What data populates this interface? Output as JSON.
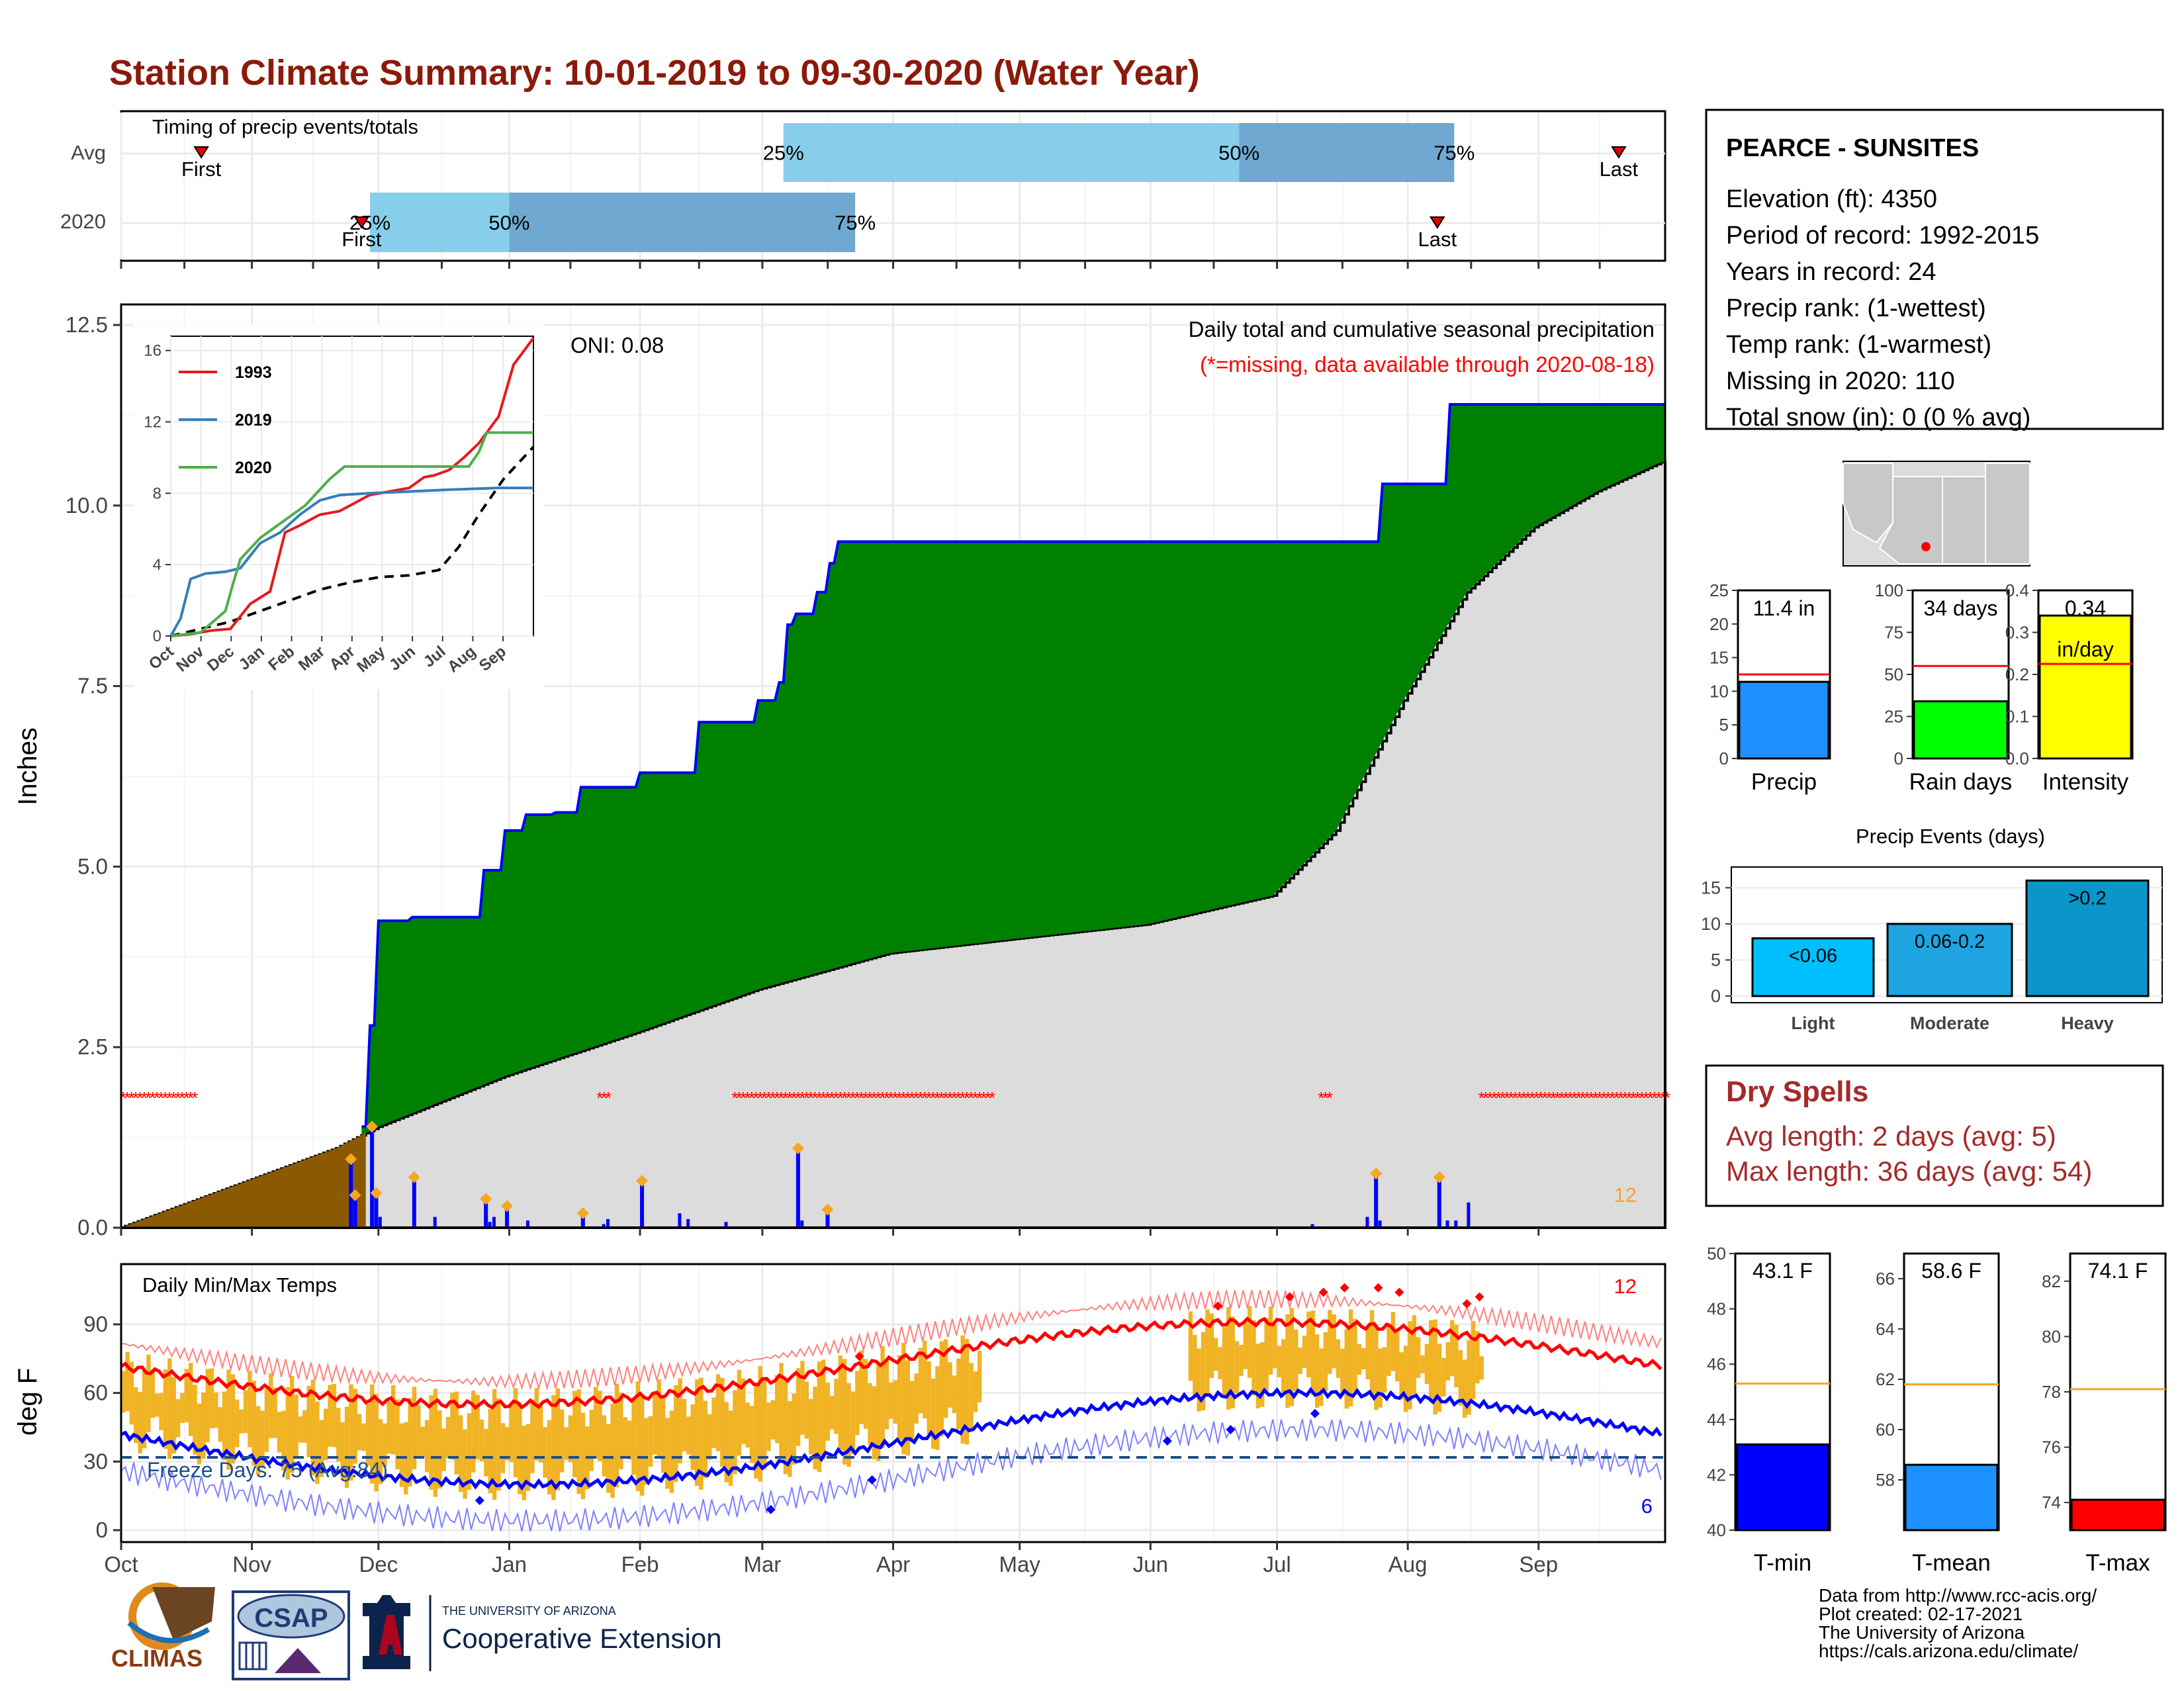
{
  "title": "Station Climate Summary: 10-01-2019 to 09-30-2020 (Water Year)",
  "colors": {
    "title": "#8B1A0A",
    "green": "#008000",
    "gray": "#DCDCDC",
    "brown": "#8B5A00",
    "blue": "#0000FF",
    "orange": "#F5A623",
    "red": "#FF0000",
    "dry_spells": "#A52A2A",
    "light_blue": "#87CEEB",
    "mid_blue": "#6FA8D0"
  },
  "timing_panel": {
    "label": "Timing of precip events/totals",
    "rows": [
      {
        "label": "Avg",
        "first_label": "First",
        "last_label": "Last",
        "first_date": "2019-10-20",
        "last_date": "2020-09-20",
        "bar_start": "2020-03-06",
        "p50": "2020-06-22",
        "p75": "2020-08-12",
        "q25_label": "25%",
        "q50_label": "50%",
        "q75_label": "75%"
      },
      {
        "label": "2020",
        "first_label": "First",
        "last_label": "Last",
        "first_date": "2019-11-27",
        "last_date": "2020-08-08",
        "bar_start": "2019-11-29",
        "p50": "2020-01-01",
        "p75": "2020-03-23",
        "q25_label": "25%",
        "q50_label": "50%",
        "q75_label": "75%"
      }
    ]
  },
  "main_panel": {
    "ylabel": "Inches",
    "yticks": [
      "0.0",
      "2.5",
      "5.0",
      "7.5",
      "10.0",
      "12.5"
    ],
    "ylim": [
      0,
      12.5
    ],
    "oni_label": "ONI: 0.08",
    "note_title": "Daily total and cumulative seasonal precipitation",
    "note_missing": "(*=missing, data available through 2020-08-18)",
    "corner_count": "12"
  },
  "inset": {
    "yticks": [
      "0",
      "4",
      "8",
      "12",
      "16"
    ],
    "xticks": [
      "Oct",
      "Nov",
      "Dec",
      "Jan",
      "Feb",
      "Mar",
      "Apr",
      "May",
      "Jun",
      "Jul",
      "Aug",
      "Sep"
    ],
    "legend": [
      {
        "name": "1993",
        "color": "#E41A1C"
      },
      {
        "name": "2019",
        "color": "#377EB8"
      },
      {
        "name": "2020",
        "color": "#4DAF4A"
      }
    ]
  },
  "temp_panel": {
    "title": "Daily Min/Max Temps",
    "ylabel": "deg F",
    "yticks": [
      "0",
      "30",
      "60",
      "90"
    ],
    "freeze_label": "Freeze Days: 75 (Avg:84)",
    "count_top": "12",
    "count_bottom": "6"
  },
  "x_months": [
    "Oct",
    "Nov",
    "Dec",
    "Jan",
    "Feb",
    "Mar",
    "Apr",
    "May",
    "Jun",
    "Jul",
    "Aug",
    "Sep"
  ],
  "station": {
    "name": "PEARCE - SUNSITES",
    "lines": [
      "Elevation (ft): 4350",
      "Period of record: 1992-2015",
      "Years in record: 24",
      "Precip rank:  (1-wettest)",
      "Temp rank:  (1-warmest)",
      "Missing in 2020: 110",
      "Total snow (in): 0 (0 % avg)"
    ]
  },
  "mini_bars": [
    {
      "label": "Precip",
      "value_label": "11.4 in",
      "value": 11.4,
      "avg": 12.5,
      "ymax": 25,
      "yticks": [
        "0",
        "5",
        "10",
        "15",
        "20",
        "25"
      ],
      "color": "#1E90FF"
    },
    {
      "label": "Rain days",
      "value_label": "34 days",
      "value": 34,
      "avg": 55,
      "ymax": 100,
      "yticks": [
        "0",
        "25",
        "50",
        "75",
        "100"
      ],
      "color": "#00FF00"
    },
    {
      "label": "Intensity",
      "value_label": "0.34",
      "value_label2": "in/day",
      "value": 0.34,
      "avg": 0.225,
      "ymax": 0.4,
      "yticks": [
        "0.0",
        "0.1",
        "0.2",
        "0.3",
        "0.4"
      ],
      "color": "#FFFF00"
    }
  ],
  "precip_events": {
    "title": "Precip Events (days)",
    "yticks": [
      "0",
      "5",
      "10",
      "15"
    ],
    "categories": [
      "Light",
      "Moderate",
      "Heavy"
    ],
    "bin_labels": [
      "<0.06",
      "0.06-0.2",
      ">0.2"
    ],
    "values": [
      8,
      10,
      16
    ],
    "colors": [
      "#00BFFF",
      "#1EA4E0",
      "#0A96C8"
    ]
  },
  "dry_spells": {
    "title": "Dry Spells",
    "avg_length": "Avg length: 2 days (avg: 5)",
    "max_length": "Max length: 36 days (avg: 54)"
  },
  "temp_bars": [
    {
      "label": "T-min",
      "value_label": "43.1 F",
      "value": 43.1,
      "avg": 45.3,
      "ymin": 40,
      "ymax": 50,
      "yticks": [
        "40",
        "42",
        "44",
        "46",
        "48",
        "50"
      ],
      "color": "#0000FF"
    },
    {
      "label": "T-mean",
      "value_label": "58.6 F",
      "value": 58.6,
      "avg": 61.8,
      "ymin": 56,
      "ymax": 67,
      "yticks": [
        "58",
        "60",
        "62",
        "64",
        "66"
      ],
      "color": "#1E90FF"
    },
    {
      "label": "T-max",
      "value_label": "74.1 F",
      "value": 74.1,
      "avg": 78.1,
      "ymin": 73,
      "ymax": 83,
      "yticks": [
        "74",
        "76",
        "78",
        "80",
        "82"
      ],
      "color": "#FF0000"
    }
  ],
  "footer": {
    "credits": [
      "Data from http://www.rcc-acis.org/",
      "Plot created: 02-17-2021",
      "The University of Arizona",
      "https://cals.arizona.edu/climate/"
    ],
    "climas": "CLIMAS",
    "csap": "CSAP",
    "ua_small": "THE UNIVERSITY OF ARIZONA",
    "ua_big": "Cooperative Extension"
  },
  "chart_data": {
    "type": "area",
    "title": "Daily total and cumulative seasonal precipitation",
    "ylabel": "Inches",
    "ylim": [
      0,
      12.5
    ],
    "series": [
      {
        "name": "2020",
        "x": [
          "2019-10-01",
          "2019-11-23",
          "2019-11-28",
          "2019-11-29",
          "2019-12-01",
          "2019-12-09",
          "2019-12-26",
          "2019-12-31",
          "2020-01-05",
          "2020-01-12",
          "2020-01-18",
          "2020-02-01",
          "2020-02-15",
          "2020-02-29",
          "2020-03-05",
          "2020-03-07",
          "2020-03-09",
          "2020-03-14",
          "2020-03-17",
          "2020-03-19",
          "2020-07-24",
          "2020-07-26",
          "2020-08-08",
          "2020-08-11",
          "2020-09-30"
        ],
        "values": [
          0,
          1.4,
          1.4,
          2.8,
          4.25,
          4.3,
          4.95,
          5.5,
          5.72,
          5.75,
          6.1,
          6.3,
          7.0,
          7.3,
          7.55,
          8.35,
          8.5,
          8.8,
          9.2,
          9.5,
          9.5,
          10.3,
          10.3,
          11.4,
          11.4
        ]
      },
      {
        "name": "avg",
        "x": [
          "2019-10-01",
          "2019-11-21",
          "2019-12-01",
          "2019-12-31",
          "2020-01-31",
          "2020-02-29",
          "2020-03-31",
          "2020-04-30",
          "2020-05-31",
          "2020-06-30",
          "2020-07-15",
          "2020-07-31",
          "2020-08-15",
          "2020-08-31",
          "2020-09-15",
          "2020-09-30"
        ],
        "values": [
          0,
          1.1,
          1.4,
          2.1,
          2.7,
          3.3,
          3.8,
          4.0,
          4.2,
          4.6,
          5.5,
          7.3,
          8.8,
          9.7,
          10.2,
          10.6
        ]
      }
    ],
    "daily": [
      {
        "date": "2019-11-24",
        "value": 0.95
      },
      {
        "date": "2019-11-25",
        "value": 0.45
      },
      {
        "date": "2019-11-29",
        "value": 1.4
      },
      {
        "date": "2019-11-30",
        "value": 0.48
      },
      {
        "date": "2019-12-09",
        "value": 0.7
      },
      {
        "date": "2019-12-26",
        "value": 0.4
      },
      {
        "date": "2019-12-31",
        "value": 0.3
      },
      {
        "date": "2020-01-18",
        "value": 0.2
      },
      {
        "date": "2020-02-01",
        "value": 0.65
      },
      {
        "date": "2020-03-09",
        "value": 1.1
      },
      {
        "date": "2020-03-16",
        "value": 0.25
      },
      {
        "date": "2020-07-24",
        "value": 0.75
      },
      {
        "date": "2020-08-08",
        "value": 0.7
      }
    ]
  }
}
